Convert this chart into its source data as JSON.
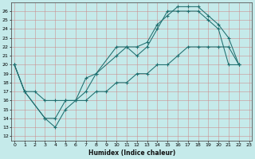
{
  "xlabel": "Humidex (Indice chaleur)",
  "xlim": [
    -0.3,
    23.3
  ],
  "ylim": [
    11.5,
    27.0
  ],
  "yticks": [
    12,
    13,
    14,
    15,
    16,
    17,
    18,
    19,
    20,
    21,
    22,
    23,
    24,
    25,
    26
  ],
  "xticks": [
    0,
    1,
    2,
    3,
    4,
    5,
    6,
    7,
    8,
    9,
    10,
    11,
    12,
    13,
    14,
    15,
    16,
    17,
    18,
    19,
    20,
    21,
    22,
    23
  ],
  "bg_color": "#c5eaea",
  "line_color": "#1e6e6e",
  "grid_color": "#cc8888",
  "line1_x": [
    0,
    1,
    3,
    4,
    5,
    6,
    7,
    8,
    10,
    11,
    12,
    13,
    14,
    15,
    16,
    17,
    18,
    19,
    20,
    21,
    22
  ],
  "line1_y": [
    20,
    17,
    14,
    13,
    15,
    16,
    17,
    19,
    21,
    22,
    21,
    22,
    24,
    26,
    26,
    26,
    26,
    25,
    24,
    20,
    20
  ],
  "line2_x": [
    0,
    1,
    3,
    4,
    5,
    6,
    7,
    8,
    10,
    11,
    12,
    13,
    14,
    15,
    16,
    17,
    18,
    19,
    20,
    21,
    22
  ],
  "line2_y": [
    20,
    17,
    14,
    14,
    16,
    16,
    18.5,
    19,
    22,
    22,
    22,
    22.5,
    24.5,
    25.5,
    26.5,
    26.5,
    26.5,
    25.5,
    24.5,
    23,
    20
  ],
  "line3_x": [
    0,
    1,
    2,
    3,
    4,
    5,
    6,
    7,
    8,
    9,
    10,
    11,
    12,
    13,
    14,
    15,
    16,
    17,
    18,
    19,
    20,
    21,
    22
  ],
  "line3_y": [
    20,
    17,
    17,
    16,
    16,
    16,
    16,
    16,
    17,
    17,
    18,
    18,
    19,
    19,
    20,
    20,
    21,
    22,
    22,
    22,
    22,
    22,
    20
  ]
}
